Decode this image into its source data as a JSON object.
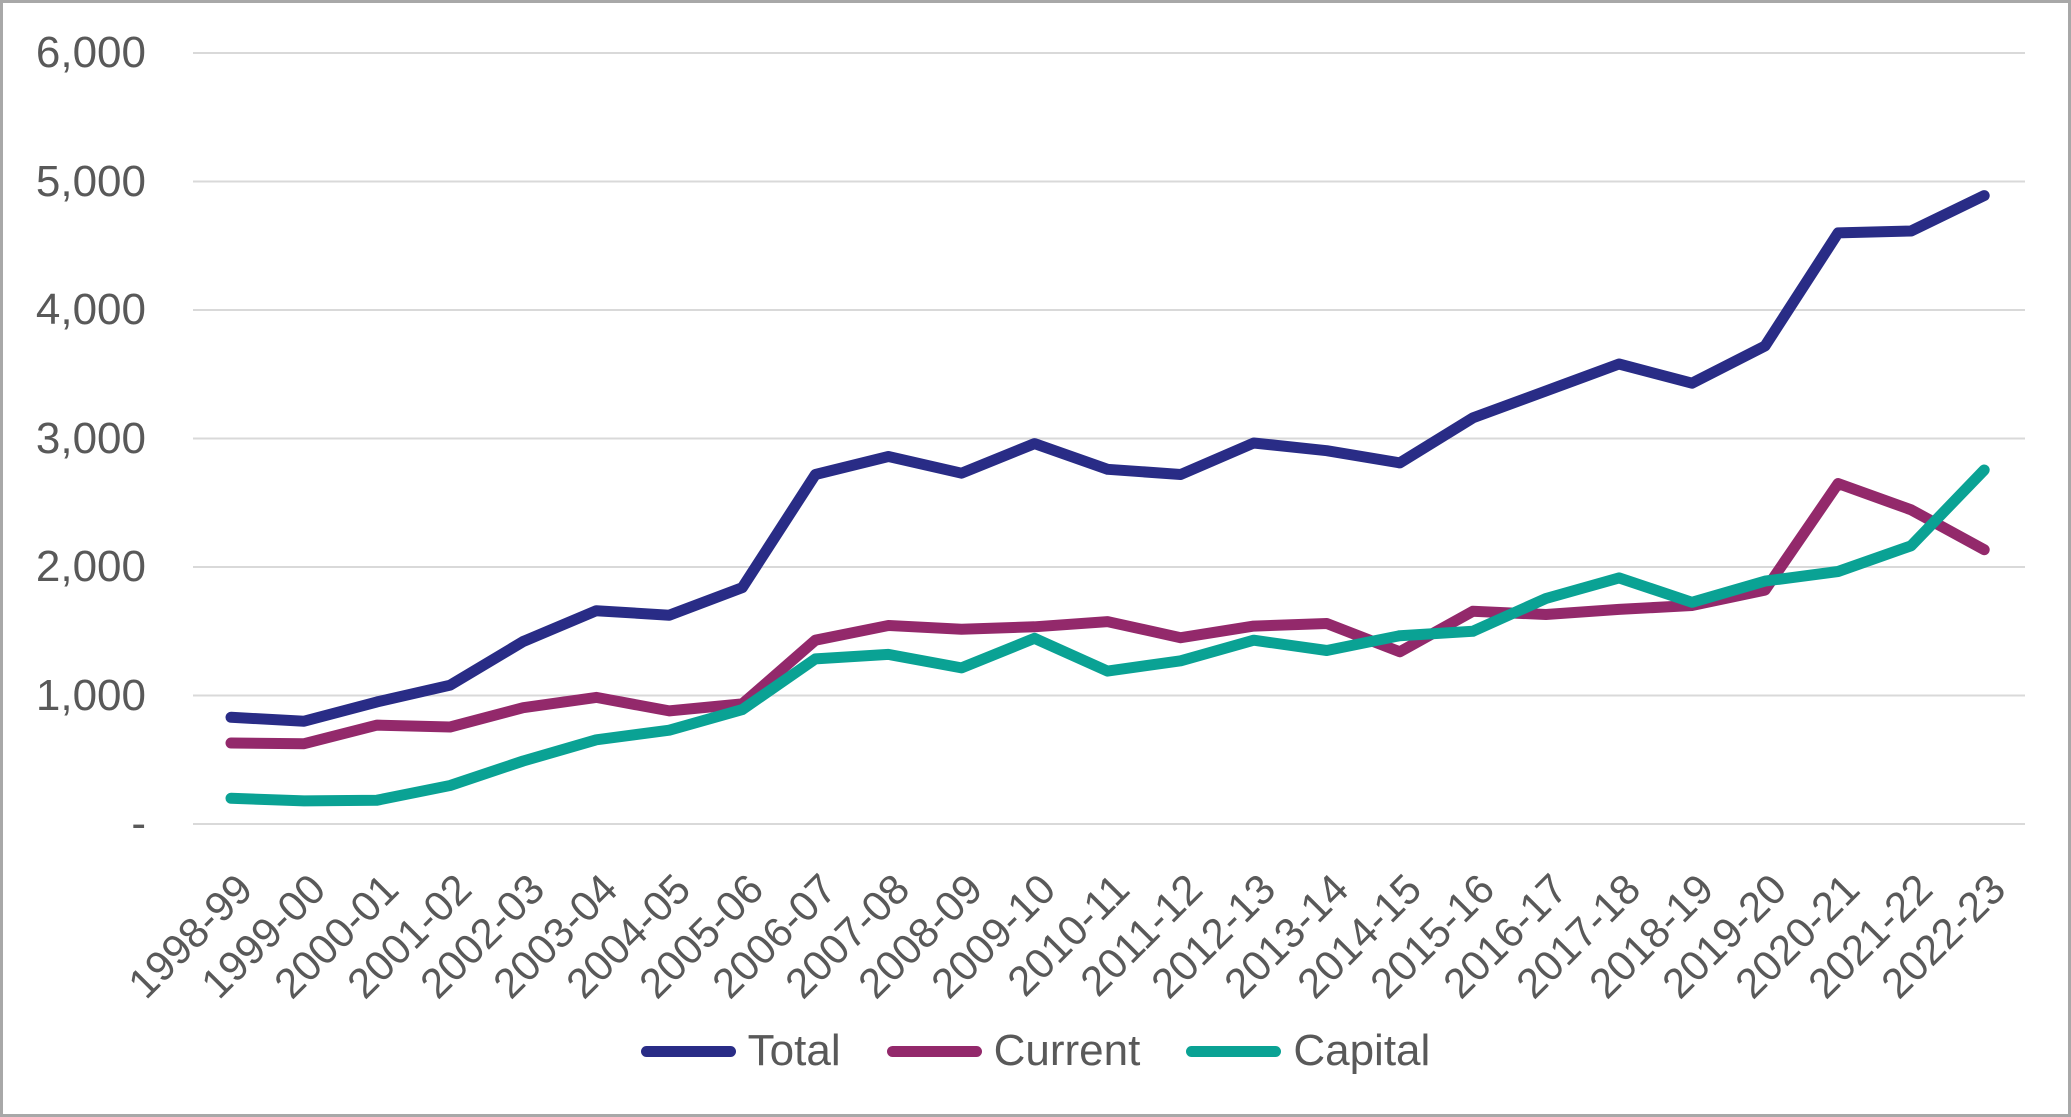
{
  "chart_data": {
    "type": "line",
    "title": "",
    "xlabel": "",
    "ylabel": "",
    "categories": [
      "1998-99",
      "1999-00",
      "2000-01",
      "2001-02",
      "2002-03",
      "2003-04",
      "2004-05",
      "2005-06",
      "2006-07",
      "2007-08",
      "2008-09",
      "2009-10",
      "2010-11",
      "2011-12",
      "2012-13",
      "2013-14",
      "2014-15",
      "2015-16",
      "2016-17",
      "2017-18",
      "2018-19",
      "2019-20",
      "2020-21",
      "2021-22",
      "2022-23"
    ],
    "series": [
      {
        "name": "Total",
        "color": "#292C86",
        "values": [
          830,
          800,
          950,
          1080,
          1420,
          1660,
          1625,
          1840,
          2720,
          2860,
          2730,
          2960,
          2760,
          2720,
          2965,
          2905,
          2810,
          3160,
          3370,
          3580,
          3430,
          3720,
          4600,
          4615,
          4890
        ]
      },
      {
        "name": "Current",
        "color": "#93296B",
        "values": [
          630,
          625,
          770,
          755,
          905,
          985,
          880,
          935,
          1430,
          1545,
          1515,
          1535,
          1575,
          1450,
          1540,
          1560,
          1340,
          1655,
          1630,
          1670,
          1700,
          1820,
          2650,
          2445,
          2135
        ]
      },
      {
        "name": "Capital",
        "color": "#0AA294",
        "values": [
          200,
          180,
          185,
          300,
          490,
          655,
          730,
          890,
          1285,
          1320,
          1215,
          1445,
          1190,
          1270,
          1430,
          1350,
          1465,
          1500,
          1755,
          1915,
          1725,
          1890,
          1965,
          2165,
          2755
        ]
      }
    ],
    "ylim": [
      0,
      6000
    ],
    "yticks": [
      {
        "value": 0,
        "label": "-"
      },
      {
        "value": 1000,
        "label": "1,000"
      },
      {
        "value": 2000,
        "label": "2,000"
      },
      {
        "value": 3000,
        "label": "3,000"
      },
      {
        "value": 4000,
        "label": "4,000"
      },
      {
        "value": 5000,
        "label": "5,000"
      },
      {
        "value": 6000,
        "label": "6,000"
      }
    ],
    "grid": "horizontal",
    "legend_position": "bottom"
  },
  "colors": {
    "background": "#FFFFFF",
    "gridline": "#D9D9D9",
    "axis_text": "#595959",
    "border": "#A8A8A8"
  }
}
